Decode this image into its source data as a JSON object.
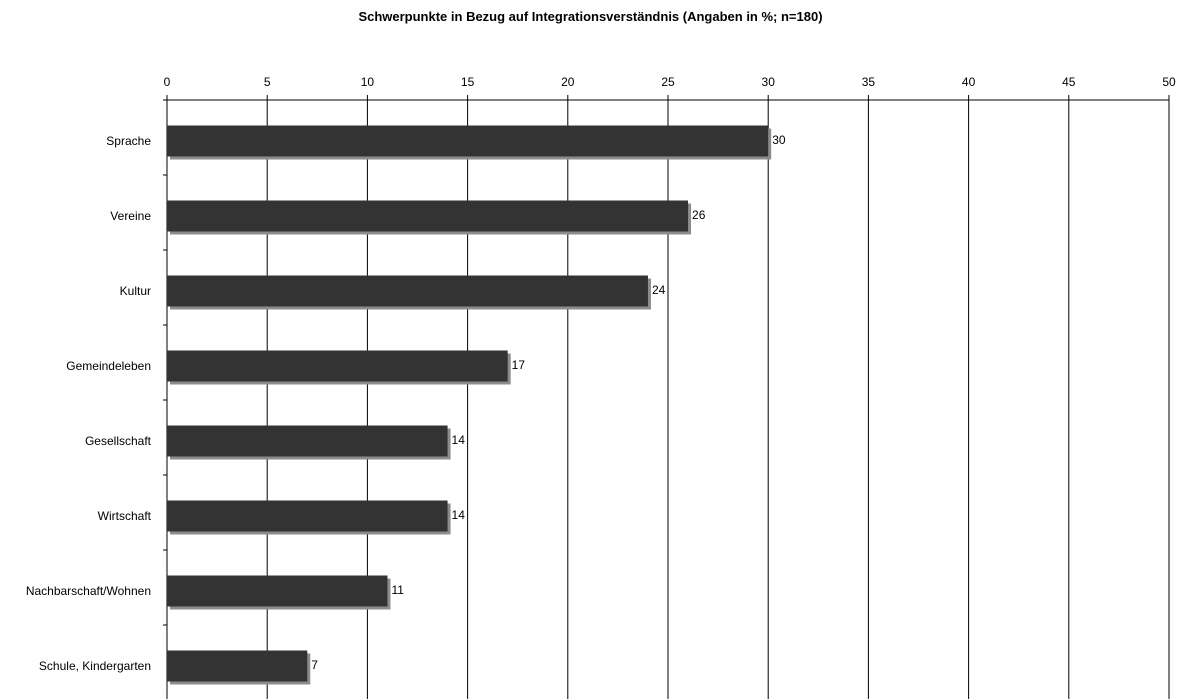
{
  "chart_data": {
    "type": "bar",
    "orientation": "horizontal",
    "title": "Schwerpunkte in Bezug auf Integrationsverständnis (Angaben in %; n=180)",
    "xlabel": "",
    "ylabel": "",
    "xlim": [
      0,
      50
    ],
    "xticks": [
      0,
      5,
      10,
      15,
      20,
      25,
      30,
      35,
      40,
      45,
      50
    ],
    "x_axis_position": "top",
    "grid": "vertical",
    "legend": "none",
    "categories": [
      "Sprache",
      "Vereine",
      "Kultur",
      "Gemeindeleben",
      "Gesellschaft",
      "Wirtschaft",
      "Nachbarschaft/Wohnen",
      "Schule, Kindergarten"
    ],
    "values": [
      30,
      26,
      24,
      17,
      14,
      14,
      11,
      7
    ],
    "data_labels": [
      "30",
      "26",
      "24",
      "17",
      "14",
      "14",
      "11",
      "7"
    ],
    "colors": {
      "bar": "#333333",
      "bar_shadow": "#8c8c8c",
      "grid": "#000000",
      "axis": "#000000"
    }
  }
}
